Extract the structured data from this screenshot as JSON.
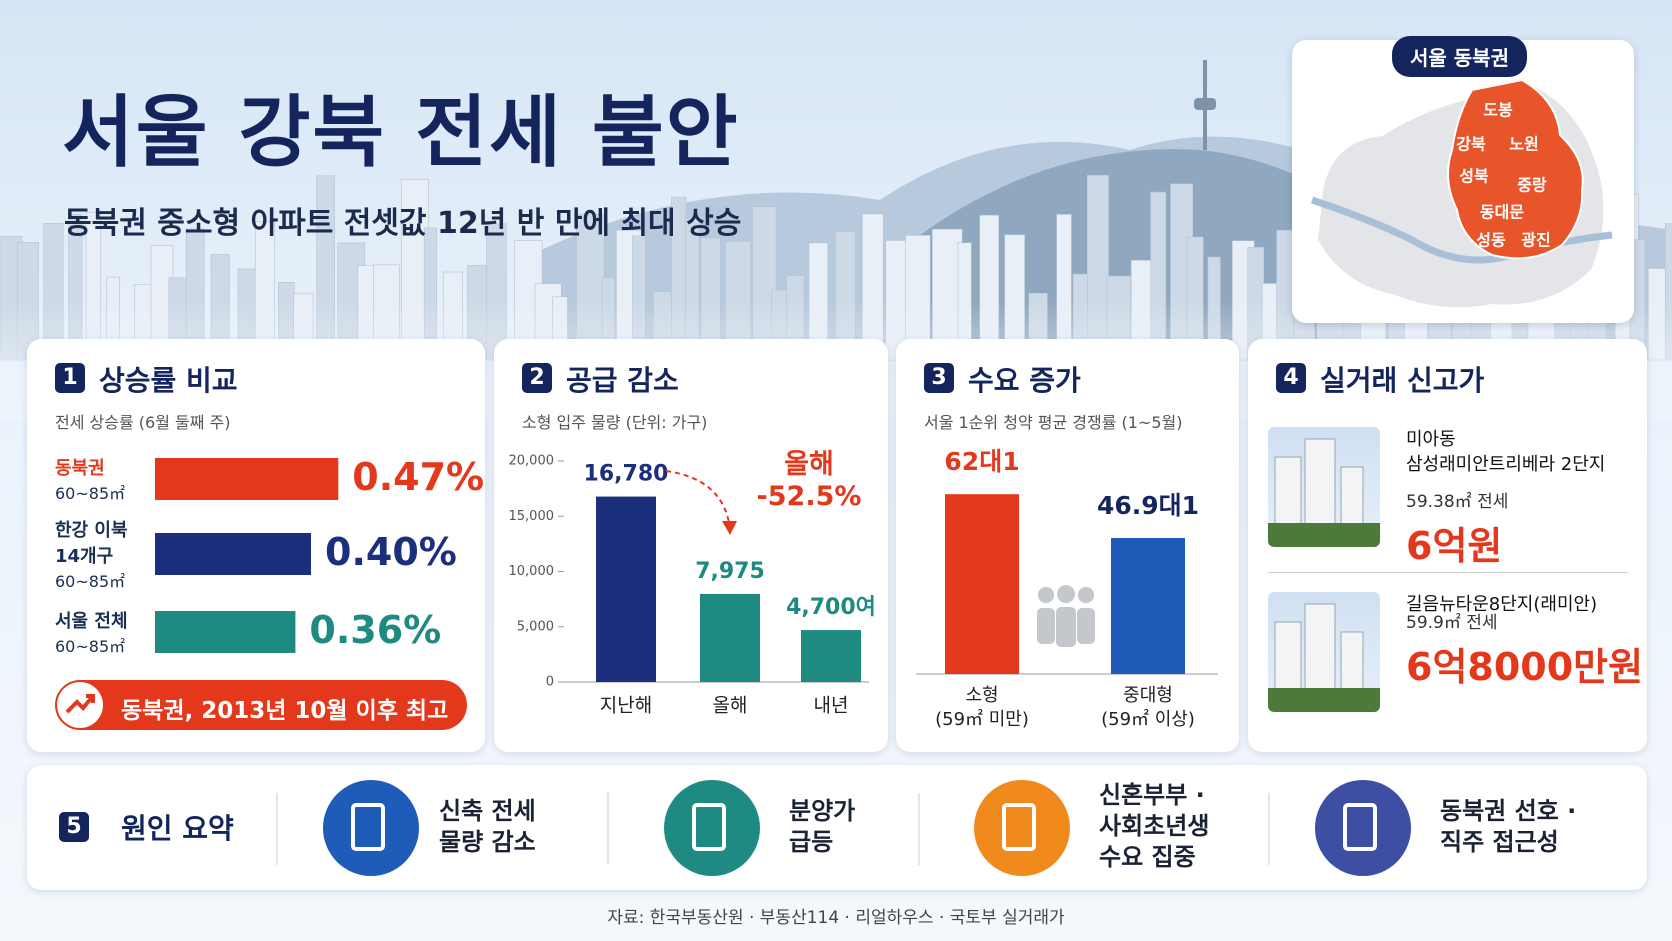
{
  "header": {
    "title": "서울 강북 전세 불안",
    "subtitle": "동북권 중소형 아파트 전셋값 12년 반 만에 최대 상승"
  },
  "map": {
    "title": "서울 동북권",
    "districts": [
      "도봉",
      "강북",
      "노원",
      "성북",
      "중랑",
      "동대문",
      "성동",
      "광진"
    ]
  },
  "chart_data": [
    {
      "type": "bar",
      "horizontal": true,
      "number": "1",
      "title": "상승률 비교",
      "subtitle": "전세 상승률 (6월 둘째 주)",
      "categories": [
        "동북권",
        "한강 이북\n14개구",
        "서울 전체"
      ],
      "sublabels": [
        "60~85㎡",
        "60~85㎡",
        "60~85㎡"
      ],
      "values": [
        0.47,
        0.4,
        0.36
      ],
      "value_labels": [
        "0.47%",
        "0.40%",
        "0.36%"
      ],
      "colors": [
        "#e4381c",
        "#1b2f7c",
        "#1f8a82"
      ],
      "note": "동북권, 2013년 10월 이후 최고"
    },
    {
      "type": "bar",
      "number": "2",
      "title": "공급 감소",
      "subtitle": "소형 입주 물량 (단위: 가구)",
      "categories": [
        "지난해",
        "올해",
        "내년"
      ],
      "values": [
        16780,
        7975,
        4700
      ],
      "value_labels": [
        "16,780",
        "7,975",
        "4,700여"
      ],
      "colors": [
        "#1b2f7c",
        "#1f8a82",
        "#1f8a82"
      ],
      "ylim": [
        0,
        20000
      ],
      "yticks": [
        0,
        {
          "value": 5000,
          "label": "5,000"
        },
        {
          "value": 10000,
          "label": "10,000"
        },
        {
          "value": 15000,
          "label": "15,000"
        },
        {
          "value": 20000,
          "label": "20,000"
        }
      ],
      "annotation": "올해\n-52.5%"
    },
    {
      "type": "bar",
      "number": "3",
      "title": "수요 증가",
      "subtitle": "서울 1순위 청약 평균 경쟁률 (1~5월)",
      "categories": [
        "소형\n(59㎡ 미만)",
        "중대형\n(59㎡ 이상)"
      ],
      "values": [
        62,
        46.9
      ],
      "value_labels": [
        "62대1",
        "46.9대1"
      ],
      "colors": [
        "#e4381c",
        "#1f5bb8"
      ]
    }
  ],
  "listings": {
    "number": "4",
    "title": "실거래 신고가",
    "items": [
      {
        "name": "미아동\n삼성래미안트리베라 2단지",
        "detail": "59.38㎡ 전세",
        "price": "6억원"
      },
      {
        "name": "길음뉴타운8단지(래미안)",
        "detail": "59.9㎡ 전세",
        "price": "6억8000만원"
      }
    ]
  },
  "summary": {
    "number": "5",
    "title": "원인 요약",
    "items": [
      "신축 전세\n물량 감소",
      "분양가\n급등",
      "신혼부부 ·\n사회초년생\n수요 집중",
      "동북권 선호 ·\n직주 접근성"
    ]
  },
  "source": "자료: 한국부동산원 · 부동산114 · 리얼하우스 · 국토부 실거래가"
}
